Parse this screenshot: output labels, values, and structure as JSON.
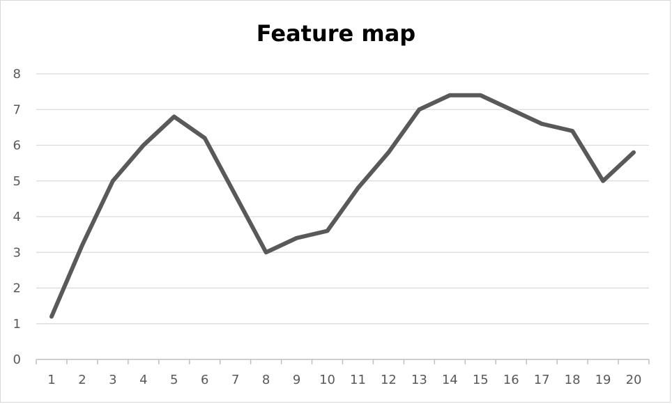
{
  "chart_data": {
    "type": "line",
    "title": "Feature map",
    "xlabel": "",
    "ylabel": "",
    "x": [
      1,
      2,
      3,
      4,
      5,
      6,
      7,
      8,
      9,
      10,
      11,
      12,
      13,
      14,
      15,
      16,
      17,
      18,
      19,
      20
    ],
    "series": [
      {
        "values": [
          1.2,
          3.2,
          5.0,
          6.0,
          6.8,
          6.2,
          4.6,
          3.0,
          3.4,
          3.6,
          4.8,
          5.8,
          7.0,
          7.4,
          7.4,
          7.0,
          6.6,
          6.4,
          5.0,
          5.8
        ],
        "color": "#595959"
      }
    ],
    "ylim": [
      0,
      8
    ],
    "yticks": [
      0,
      1,
      2,
      3,
      4,
      5,
      6,
      7,
      8
    ],
    "grid": true,
    "legend": "none"
  }
}
